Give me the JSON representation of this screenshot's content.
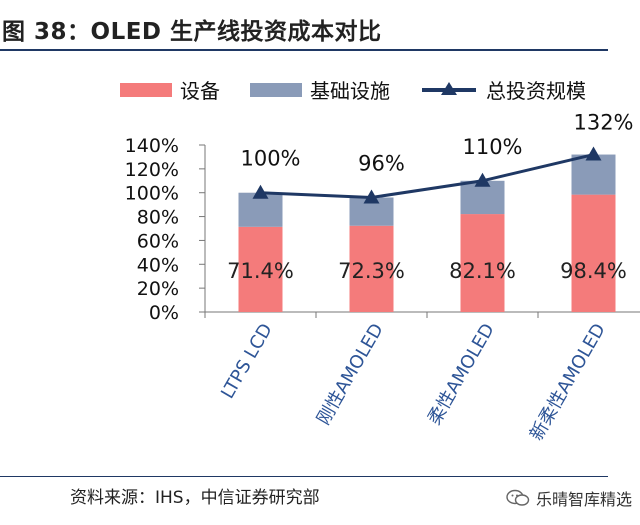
{
  "title": "图 38：OLED 生产线投资成本对比",
  "source": "资料来源：IHS，中信证券研究部",
  "watermark": "乐晴智库精选",
  "colors": {
    "equipment": "#f47b7b",
    "infrastructure": "#8a9bb8",
    "line": "#1f3864",
    "category_text": "#2e5597"
  },
  "chart_data": {
    "type": "bar",
    "stacked": true,
    "categories": [
      "LTPS LCD",
      "刚性AMOLED",
      "柔性AMOLED",
      "新柔性AMOLED"
    ],
    "series": [
      {
        "name": "设备",
        "kind": "bar",
        "values": [
          71.4,
          72.3,
          82.1,
          98.4
        ],
        "labels": [
          "71.4%",
          "72.3%",
          "82.1%",
          "98.4%"
        ]
      },
      {
        "name": "基础设施",
        "kind": "bar",
        "values": [
          28.6,
          23.7,
          27.9,
          33.6
        ]
      },
      {
        "name": "总投资规模",
        "kind": "line",
        "values": [
          100,
          96,
          110,
          132
        ],
        "labels": [
          "100%",
          "96%",
          "110%",
          "132%"
        ]
      }
    ],
    "yticks": [
      "0%",
      "20%",
      "40%",
      "60%",
      "80%",
      "100%",
      "120%",
      "140%"
    ],
    "ylim": [
      0,
      140
    ],
    "legend_position": "top"
  }
}
